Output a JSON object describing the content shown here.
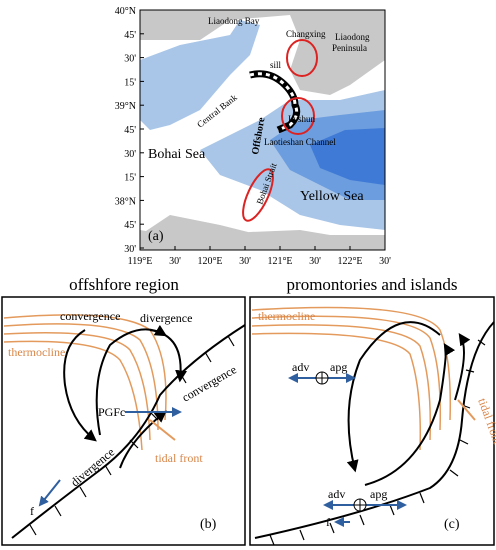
{
  "map": {
    "label": "(a)",
    "lat_ticks": [
      "40°N",
      "45'",
      "30'",
      "15'",
      "39°N",
      "45'",
      "30'",
      "15'",
      "38°N",
      "45'",
      "30'"
    ],
    "lon_ticks": [
      "119°E",
      "30'",
      "120°E",
      "30'",
      "121°E",
      "30'",
      "122°E",
      "30'"
    ],
    "places": {
      "liaodong_bay": "Liaodong Bay",
      "changxing": "Changxing",
      "liaodong_peninsula": [
        "Liaodong",
        "Peninsula"
      ],
      "sill": "sill",
      "central_bank": "Central Bank",
      "offshore": "Offshore",
      "lvshun": "Lvshun",
      "laotieshan": "Laotieshan Channel",
      "bohai_sea": "Bohai Sea",
      "bohai_strait": "Bohai Strait",
      "yellow_sea": "Yellow Sea"
    }
  },
  "panels": [
    {
      "title": "offshfore region",
      "label": "(b)",
      "texts": [
        "convergence",
        "divergence",
        "thermocline",
        "PGFc",
        "convergence",
        "divergence",
        "tidal front",
        "f"
      ]
    },
    {
      "title": "promontories and islands",
      "label": "(c)",
      "texts": [
        "thermocline",
        "adv",
        "apg",
        "tidal front",
        "adv",
        "apg",
        "f"
      ]
    }
  ]
}
